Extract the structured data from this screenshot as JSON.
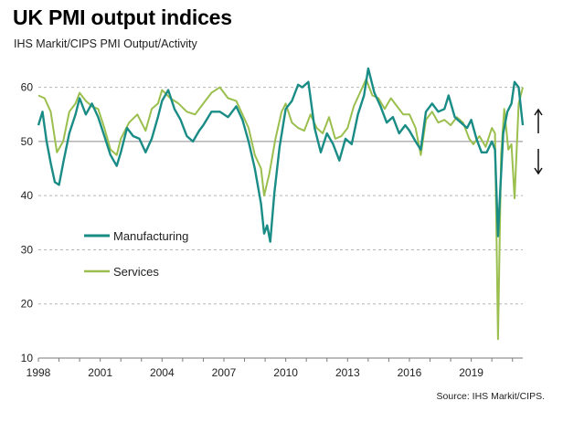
{
  "title": "UK PMI output indices",
  "subtitle": "IHS Markit/CIPS PMI Output/Activity",
  "source": "Source: IHS Markit/CIPS.",
  "colors": {
    "manufacturing": "#1a8c86",
    "services": "#9bbf4e",
    "grid": "#b5b5b5",
    "axis": "#7a7a7a",
    "arrow": "#111111"
  },
  "chart_data": {
    "type": "line",
    "xlabel": "",
    "ylabel": "",
    "xlim": [
      1998.0,
      2021.5
    ],
    "ylim": [
      10,
      65
    ],
    "x_ticks": [
      1998,
      2001,
      2004,
      2007,
      2010,
      2013,
      2016,
      2019
    ],
    "y_ticks": [
      10,
      20,
      30,
      40,
      50,
      60
    ],
    "reference_line": 50,
    "grid": "horizontal dashed",
    "legend": {
      "placement": "center-left"
    },
    "series": [
      {
        "name": "Manufacturing",
        "color": "#1a8c86",
        "points": [
          [
            1998.0,
            53.0
          ],
          [
            1998.2,
            55.5
          ],
          [
            1998.4,
            50.0
          ],
          [
            1998.6,
            46.0
          ],
          [
            1998.8,
            42.5
          ],
          [
            1999.0,
            42.0
          ],
          [
            1999.2,
            46.0
          ],
          [
            1999.5,
            51.5
          ],
          [
            1999.8,
            55.0
          ],
          [
            2000.0,
            58.0
          ],
          [
            2000.3,
            55.0
          ],
          [
            2000.6,
            57.0
          ],
          [
            2000.9,
            54.5
          ],
          [
            2001.2,
            51.0
          ],
          [
            2001.5,
            47.5
          ],
          [
            2001.8,
            45.5
          ],
          [
            2002.0,
            48.0
          ],
          [
            2002.3,
            52.5
          ],
          [
            2002.6,
            51.0
          ],
          [
            2002.9,
            50.5
          ],
          [
            2003.2,
            48.0
          ],
          [
            2003.5,
            50.5
          ],
          [
            2003.8,
            54.5
          ],
          [
            2004.0,
            57.5
          ],
          [
            2004.3,
            59.5
          ],
          [
            2004.6,
            56.0
          ],
          [
            2004.9,
            54.0
          ],
          [
            2005.2,
            51.0
          ],
          [
            2005.5,
            50.0
          ],
          [
            2005.8,
            52.0
          ],
          [
            2006.0,
            53.0
          ],
          [
            2006.4,
            55.5
          ],
          [
            2006.8,
            55.5
          ],
          [
            2007.2,
            54.5
          ],
          [
            2007.6,
            56.5
          ],
          [
            2007.9,
            54.0
          ],
          [
            2008.2,
            50.0
          ],
          [
            2008.5,
            45.0
          ],
          [
            2008.8,
            38.5
          ],
          [
            2008.95,
            33.0
          ],
          [
            2009.1,
            34.5
          ],
          [
            2009.25,
            31.5
          ],
          [
            2009.45,
            40.5
          ],
          [
            2009.7,
            49.0
          ],
          [
            2010.0,
            56.0
          ],
          [
            2010.3,
            57.5
          ],
          [
            2010.6,
            60.5
          ],
          [
            2010.8,
            60.0
          ],
          [
            2011.1,
            61.0
          ],
          [
            2011.4,
            52.5
          ],
          [
            2011.7,
            48.0
          ],
          [
            2012.0,
            51.5
          ],
          [
            2012.3,
            49.5
          ],
          [
            2012.6,
            46.5
          ],
          [
            2012.9,
            50.5
          ],
          [
            2013.2,
            49.5
          ],
          [
            2013.5,
            55.0
          ],
          [
            2013.8,
            58.5
          ],
          [
            2014.0,
            63.5
          ],
          [
            2014.3,
            59.0
          ],
          [
            2014.6,
            56.5
          ],
          [
            2014.9,
            53.5
          ],
          [
            2015.2,
            54.5
          ],
          [
            2015.5,
            51.5
          ],
          [
            2015.8,
            53.0
          ],
          [
            2016.0,
            52.0
          ],
          [
            2016.3,
            50.0
          ],
          [
            2016.55,
            48.5
          ],
          [
            2016.8,
            55.5
          ],
          [
            2017.1,
            57.0
          ],
          [
            2017.4,
            55.5
          ],
          [
            2017.7,
            56.0
          ],
          [
            2017.9,
            58.5
          ],
          [
            2018.2,
            54.5
          ],
          [
            2018.5,
            53.5
          ],
          [
            2018.8,
            52.5
          ],
          [
            2019.0,
            54.0
          ],
          [
            2019.25,
            50.5
          ],
          [
            2019.5,
            48.0
          ],
          [
            2019.75,
            48.0
          ],
          [
            2020.0,
            50.0
          ],
          [
            2020.15,
            48.5
          ],
          [
            2020.3,
            32.5
          ],
          [
            2020.4,
            40.5
          ],
          [
            2020.55,
            51.5
          ],
          [
            2020.75,
            55.5
          ],
          [
            2020.95,
            57.0
          ],
          [
            2021.1,
            61.0
          ],
          [
            2021.3,
            60.0
          ],
          [
            2021.5,
            53.0
          ]
        ]
      },
      {
        "name": "Services",
        "color": "#9bbf4e",
        "points": [
          [
            1998.0,
            58.5
          ],
          [
            1998.3,
            58.0
          ],
          [
            1998.6,
            55.5
          ],
          [
            1998.9,
            48.0
          ],
          [
            1999.2,
            50.0
          ],
          [
            1999.5,
            55.5
          ],
          [
            1999.8,
            57.0
          ],
          [
            2000.0,
            59.0
          ],
          [
            2000.3,
            57.5
          ],
          [
            2000.6,
            56.5
          ],
          [
            2000.9,
            56.0
          ],
          [
            2001.2,
            52.5
          ],
          [
            2001.5,
            48.5
          ],
          [
            2001.8,
            47.5
          ],
          [
            2002.0,
            50.5
          ],
          [
            2002.4,
            53.5
          ],
          [
            2002.8,
            55.0
          ],
          [
            2003.2,
            52.0
          ],
          [
            2003.5,
            56.0
          ],
          [
            2003.8,
            57.0
          ],
          [
            2004.0,
            59.5
          ],
          [
            2004.4,
            58.0
          ],
          [
            2004.8,
            57.0
          ],
          [
            2005.2,
            55.5
          ],
          [
            2005.6,
            55.0
          ],
          [
            2006.0,
            57.0
          ],
          [
            2006.4,
            59.0
          ],
          [
            2006.8,
            60.0
          ],
          [
            2007.2,
            58.0
          ],
          [
            2007.6,
            57.5
          ],
          [
            2007.9,
            55.0
          ],
          [
            2008.2,
            52.5
          ],
          [
            2008.5,
            47.5
          ],
          [
            2008.8,
            45.0
          ],
          [
            2008.95,
            40.0
          ],
          [
            2009.2,
            44.0
          ],
          [
            2009.5,
            50.5
          ],
          [
            2009.8,
            55.5
          ],
          [
            2010.0,
            57.0
          ],
          [
            2010.3,
            53.5
          ],
          [
            2010.6,
            52.5
          ],
          [
            2010.9,
            52.0
          ],
          [
            2011.2,
            55.0
          ],
          [
            2011.5,
            52.5
          ],
          [
            2011.8,
            51.5
          ],
          [
            2012.1,
            54.5
          ],
          [
            2012.4,
            50.5
          ],
          [
            2012.7,
            51.0
          ],
          [
            2013.0,
            52.5
          ],
          [
            2013.3,
            56.5
          ],
          [
            2013.6,
            59.0
          ],
          [
            2013.9,
            61.5
          ],
          [
            2014.2,
            58.5
          ],
          [
            2014.5,
            58.0
          ],
          [
            2014.8,
            56.0
          ],
          [
            2015.1,
            58.0
          ],
          [
            2015.4,
            56.5
          ],
          [
            2015.7,
            55.0
          ],
          [
            2016.0,
            55.0
          ],
          [
            2016.3,
            52.5
          ],
          [
            2016.55,
            47.5
          ],
          [
            2016.8,
            54.0
          ],
          [
            2017.1,
            55.5
          ],
          [
            2017.4,
            53.5
          ],
          [
            2017.7,
            54.0
          ],
          [
            2018.0,
            53.0
          ],
          [
            2018.3,
            54.5
          ],
          [
            2018.6,
            53.5
          ],
          [
            2018.9,
            50.5
          ],
          [
            2019.1,
            49.5
          ],
          [
            2019.4,
            51.0
          ],
          [
            2019.7,
            49.0
          ],
          [
            2020.0,
            52.5
          ],
          [
            2020.15,
            51.5
          ],
          [
            2020.3,
            13.5
          ],
          [
            2020.45,
            47.5
          ],
          [
            2020.6,
            56.0
          ],
          [
            2020.8,
            48.5
          ],
          [
            2020.95,
            49.5
          ],
          [
            2021.1,
            39.5
          ],
          [
            2021.3,
            57.0
          ],
          [
            2021.5,
            60.0
          ]
        ]
      }
    ]
  }
}
